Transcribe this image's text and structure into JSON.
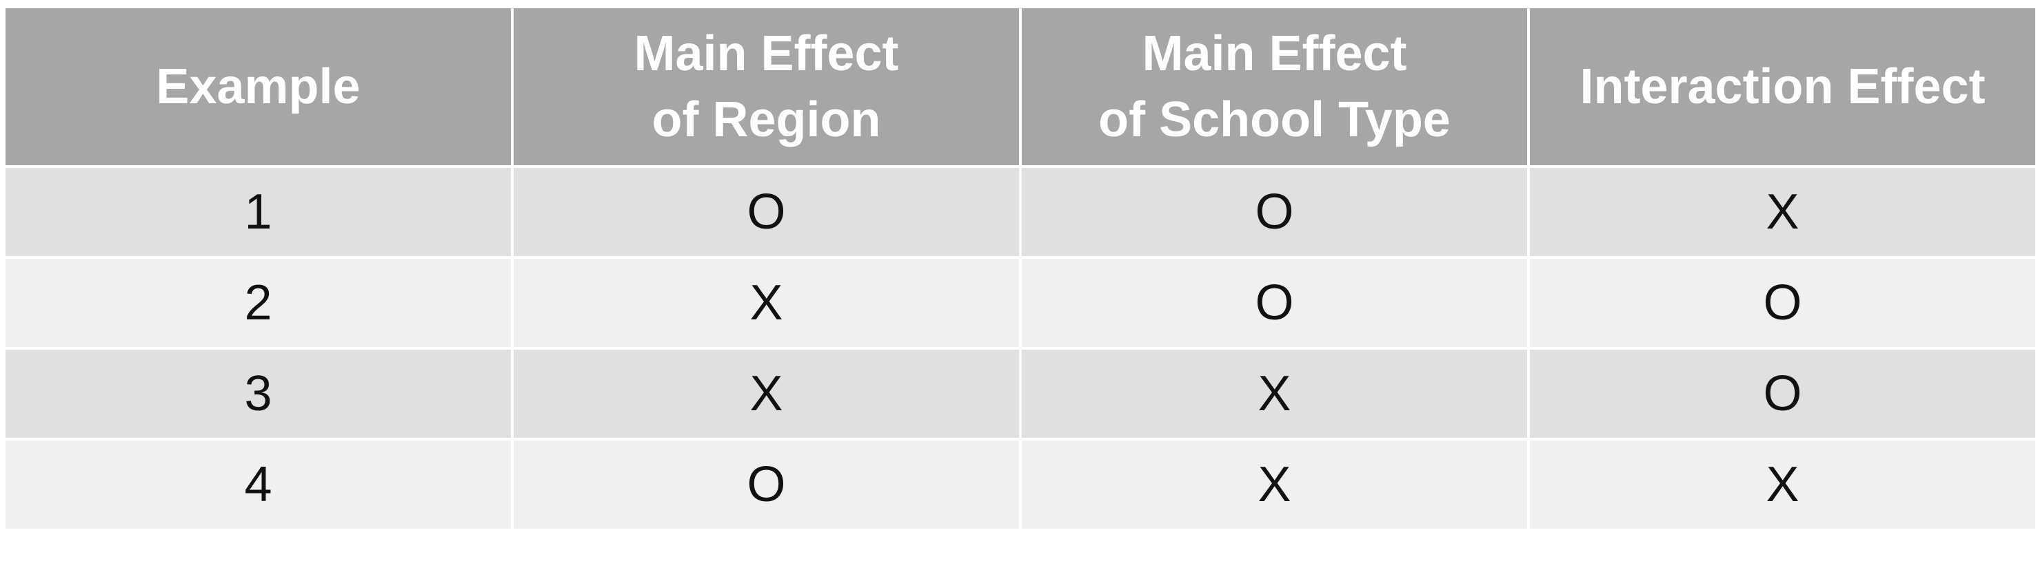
{
  "table": {
    "headers": [
      {
        "lines": [
          "Example"
        ]
      },
      {
        "lines": [
          "Main Effect",
          "of Region"
        ]
      },
      {
        "lines": [
          "Main Effect",
          "of School Type"
        ]
      },
      {
        "lines": [
          "Interaction Effect"
        ]
      }
    ],
    "rows": [
      [
        "1",
        "O",
        "O",
        "X"
      ],
      [
        "2",
        "X",
        "O",
        "O"
      ],
      [
        "3",
        "X",
        "X",
        "O"
      ],
      [
        "4",
        "O",
        "X",
        "X"
      ]
    ]
  },
  "colors": {
    "header_bg": "#a6a6a6",
    "header_text": "#ffffff",
    "row_dark": "#e0e0e0",
    "row_light": "#f0f0f0",
    "cell_text": "#111111"
  }
}
